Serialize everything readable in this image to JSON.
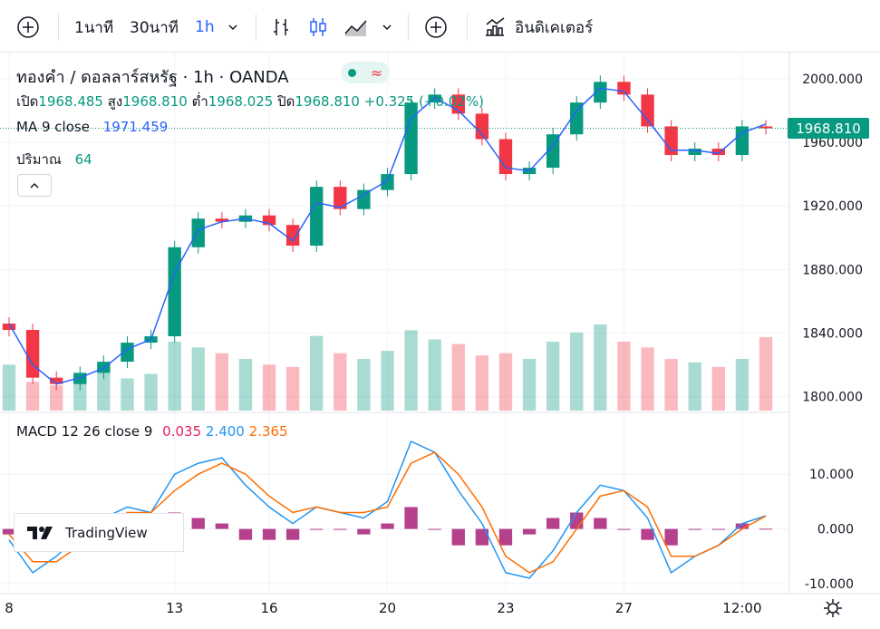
{
  "toolbar": {
    "intervals": [
      "1นาที",
      "30นาที",
      "1h"
    ],
    "selected_interval": "1h",
    "indicators_label": "อินดิเคเตอร์"
  },
  "legend": {
    "symbol": "ทองคำ / ดอลลาร์สหรัฐ · 1h · OANDA",
    "open_label": "เปิด",
    "open": "1968.485",
    "high_label": "สูง",
    "high": "1968.810",
    "low_label": "ต่ำ",
    "low": "1968.025",
    "close_label": "ปิด",
    "close": "1968.810",
    "change": "+0.325 (+0.02%)",
    "ma_label": "MA 9 close",
    "ma_value": "1971.459",
    "volume_label": "ปริมาณ",
    "volume_value": "64",
    "macd_label": "MACD 12 26 close 9",
    "macd_hist": "0.035",
    "macd_line": "2.400",
    "macd_signal": "2.365"
  },
  "colors": {
    "up": "#089981",
    "down": "#f23645",
    "ma": "#2962ff",
    "macd": "#2196f3",
    "signal": "#ff6d00",
    "histogram": "#a3116f"
  },
  "watermark": "TradingView",
  "chart_data": [
    {
      "type": "candlestick",
      "series": [
        {
          "name": "ทองคำ / ดอลลาร์สหรัฐ",
          "values": [
            1842,
            1812,
            1808,
            1815,
            1822,
            1834,
            1838,
            1894,
            1912,
            1910,
            1914,
            1908,
            1895,
            1932,
            1918,
            1930,
            1940,
            1985,
            1990,
            1978,
            1962,
            1940,
            1944,
            1965,
            1985,
            1998,
            1990,
            1970,
            1952,
            1956,
            1952,
            1970,
            1968.81
          ]
        }
      ],
      "last_price": "1968.810",
      "yaxis_ticks": [
        "2000.000",
        "1960.000",
        "1920.000",
        "1880.000",
        "1840.000",
        "1800.000"
      ],
      "ylim": [
        1793,
        2013
      ],
      "xaxis_ticks": [
        "8",
        "13",
        "16",
        "20",
        "23",
        "27",
        "12:00"
      ]
    },
    {
      "type": "line",
      "series": [
        {
          "name": "MA 9 close",
          "values": [
            1846,
            1820,
            1808,
            1812,
            1818,
            1830,
            1836,
            1878,
            1905,
            1910,
            1912,
            1909,
            1898,
            1922,
            1919,
            1927,
            1936,
            1975,
            1988,
            1980,
            1965,
            1944,
            1942,
            1958,
            1980,
            1994,
            1992,
            1974,
            1955,
            1955,
            1953,
            1966,
            1971.46
          ]
        }
      ]
    },
    {
      "type": "bar",
      "series": [
        {
          "name": "ปริมาณ",
          "values": [
            40,
            25,
            22,
            30,
            35,
            28,
            32,
            60,
            55,
            50,
            45,
            40,
            38,
            65,
            50,
            45,
            52,
            70,
            62,
            58,
            48,
            50,
            45,
            60,
            68,
            75,
            60,
            55,
            45,
            42,
            38,
            45,
            64
          ]
        }
      ]
    },
    {
      "type": "line",
      "series": [
        {
          "name": "MACD",
          "values": [
            -2,
            -8,
            -5,
            -1,
            2,
            4,
            3,
            10,
            12,
            13,
            8,
            4,
            1,
            4,
            3,
            2,
            5,
            16,
            14,
            7,
            1,
            -8,
            -9,
            -4,
            3,
            8,
            7,
            2,
            -8,
            -5,
            -3,
            1,
            2.4
          ]
        },
        {
          "name": "Signal",
          "values": [
            -1,
            -6,
            -6,
            -3,
            0,
            3,
            3,
            7,
            10,
            12,
            10,
            6,
            3,
            4,
            3,
            3,
            4,
            12,
            14,
            10,
            4,
            -5,
            -8,
            -6,
            0,
            6,
            7,
            4,
            -5,
            -5,
            -3,
            0,
            2.365
          ]
        }
      ],
      "histogram": [
        -1,
        -2,
        1,
        2,
        2,
        1,
        0,
        3,
        2,
        1,
        -2,
        -2,
        -2,
        0,
        0,
        -1,
        1,
        4,
        0,
        -3,
        -3,
        -3,
        -1,
        2,
        3,
        2,
        0,
        -2,
        -3,
        0,
        0,
        1,
        0.035
      ],
      "yaxis_ticks": [
        "10.000",
        "0.000",
        "-10.000"
      ],
      "ylim": [
        -11,
        16
      ]
    }
  ]
}
